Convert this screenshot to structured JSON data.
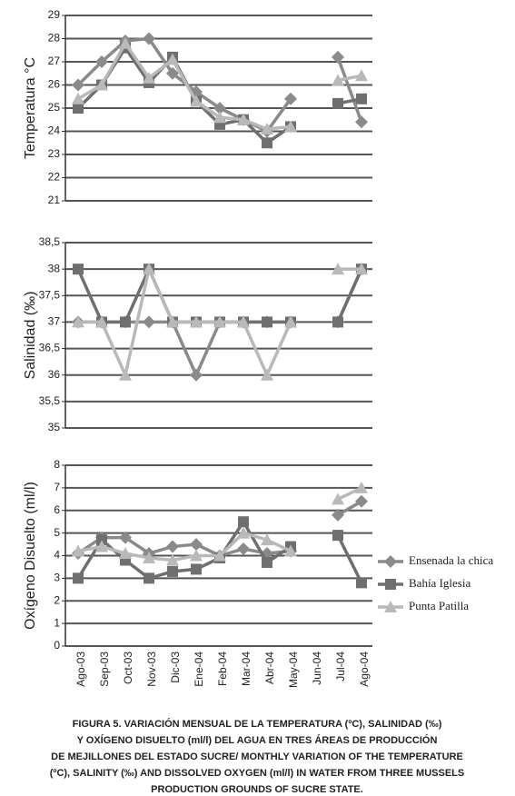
{
  "chart_data": [
    {
      "type": "line",
      "y_label": "Temperatura °C",
      "ylim": [
        21,
        29
      ],
      "yticks": [
        21,
        22,
        23,
        24,
        25,
        26,
        27,
        28,
        29
      ],
      "grid": true,
      "series": [
        {
          "color": "#8a8a8a",
          "marker": "diamond",
          "values": [
            26.0,
            27.0,
            27.9,
            28.0,
            26.5,
            25.7,
            25.0,
            24.5,
            24.0,
            25.4,
            null,
            27.2,
            24.4
          ]
        },
        {
          "color": "#6f6f6f",
          "marker": "square",
          "values": [
            25.0,
            26.0,
            27.6,
            26.1,
            27.2,
            25.3,
            24.3,
            24.5,
            23.5,
            24.2,
            null,
            25.2,
            25.4
          ]
        },
        {
          "color": "#b9b9b9",
          "marker": "triangle",
          "values": [
            25.4,
            26.0,
            27.8,
            26.3,
            27.1,
            25.3,
            24.6,
            24.5,
            24.1,
            24.2,
            null,
            26.2,
            26.4
          ]
        }
      ]
    },
    {
      "type": "line",
      "y_label": "Salinidad (‰)",
      "ylim": [
        35,
        38.5
      ],
      "yticks": [
        35,
        {
          "value": 35.5,
          "label": "35,5"
        },
        36,
        {
          "value": 36.5,
          "label": "36,5"
        },
        37,
        {
          "value": 37.5,
          "label": "37,5"
        },
        38,
        {
          "value": 38.5,
          "label": "38,5"
        }
      ],
      "grid": true,
      "series": [
        {
          "color": "#8a8a8a",
          "marker": "diamond",
          "values": [
            37,
            37,
            37,
            37,
            37,
            36,
            37,
            37,
            37,
            37,
            null,
            37,
            38
          ]
        },
        {
          "color": "#6f6f6f",
          "marker": "square",
          "values": [
            38,
            37,
            37,
            38,
            37,
            37,
            37,
            37,
            37,
            37,
            null,
            37,
            38
          ]
        },
        {
          "color": "#b9b9b9",
          "marker": "triangle",
          "values": [
            37,
            37,
            36,
            38,
            37,
            37,
            37,
            37,
            36,
            37,
            null,
            38,
            38
          ]
        }
      ]
    },
    {
      "type": "line",
      "y_label": "Oxígeno Disuelto (ml/l)",
      "ylim": [
        0,
        8
      ],
      "yticks": [
        0,
        1,
        2,
        3,
        4,
        5,
        6,
        7,
        8
      ],
      "grid": true,
      "categories": [
        "Ago-03",
        "Sep-03",
        "Oct-03",
        "Nov-03",
        "Dic-03",
        "Ene-04",
        "Feb-04",
        "Mar-04",
        "Abr-04",
        "May-04",
        "Jun-04",
        "Jul-04",
        "Ago-04"
      ],
      "legend": "right",
      "series": [
        {
          "name": "Ensenada la chica",
          "color": "#8a8a8a",
          "marker": "diamond",
          "values": [
            4.1,
            4.8,
            4.8,
            4.1,
            4.4,
            4.5,
            4.0,
            4.3,
            4.1,
            4.2,
            null,
            5.8,
            6.4
          ]
        },
        {
          "name": "Bahía Iglesia",
          "color": "#6f6f6f",
          "marker": "square",
          "values": [
            3.0,
            4.7,
            3.8,
            3.0,
            3.3,
            3.4,
            3.9,
            5.5,
            3.7,
            4.4,
            null,
            4.9,
            2.8
          ]
        },
        {
          "name": "Punta Patilla",
          "color": "#b9b9b9",
          "marker": "triangle",
          "values": [
            4.2,
            4.4,
            4.1,
            3.9,
            3.8,
            4.0,
            4.0,
            5.0,
            4.7,
            4.2,
            null,
            6.5,
            7.0
          ]
        }
      ]
    }
  ],
  "caption": [
    "FIGURA 5. VARIACIÓN MENSUAL DE LA TEMPERATURA (ºC), SALINIDAD (‰)",
    "Y OXÍGENO DISUELTO (ml/l) DEL AGUA EN TRES ÁREAS DE PRODUCCIÓN",
    "DE MEJILLONES DEL ESTADO SUCRE/ MONTHLY VARIATION OF THE TEMPERATURE",
    "(ºC), SALINITY (‰) AND DISSOLVED OXYGEN (ml/l) IN WATER FROM THREE MUSSELS",
    "PRODUCTION GROUNDS OF SUCRE STATE."
  ]
}
